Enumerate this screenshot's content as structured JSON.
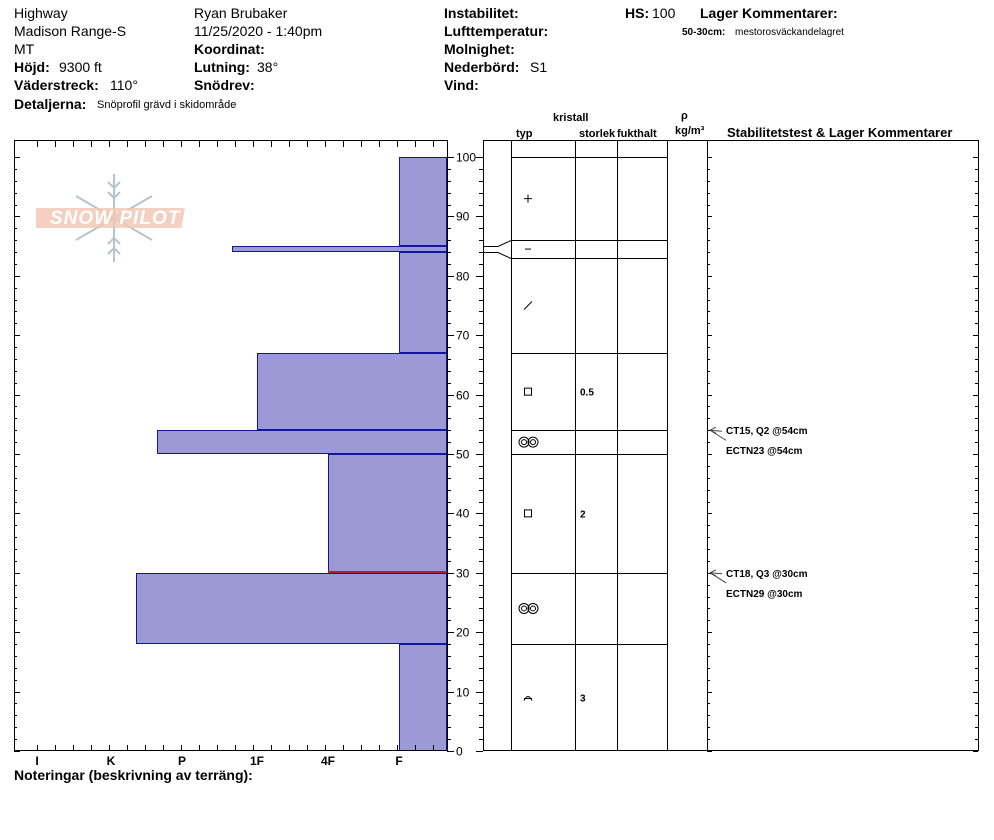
{
  "header": {
    "location": "Highway",
    "range": "Madison Range-S",
    "state": "MT",
    "observer": "Ryan Brubaker",
    "datetime": "11/25/2020 - 1:40pm",
    "elevation_label": "Höjd:",
    "elevation": "9300 ft",
    "aspect_label": "Väderstreck:",
    "aspect": "110°",
    "coord_label": "Koordinat:",
    "slope_label": "Lutning:",
    "slope": "38°",
    "drift_label": "Snödrev:",
    "details_label": "Detaljerna:",
    "details": "Snöprofil grävd i skidområde",
    "instability_label": "Instabilitet:",
    "airtemp_label": "Lufttemperatur:",
    "cloud_label": "Molnighet:",
    "precip_label": "Nederbörd:",
    "precip": "S1",
    "wind_label": "Vind:",
    "hs_label": "HS:",
    "hs": "100",
    "layer_comments_label": "Lager Kommentarer:",
    "layer_comment_depth": "50-30cm:",
    "layer_comment_text": "mestorosväckandelagret"
  },
  "columns": {
    "crystal": "kristall",
    "type": "typ",
    "size": "storlek",
    "moisture": "fukthalt",
    "rho": "ρ",
    "density_unit": "kg/m³",
    "stability": "Stabilitetstest & Lager Kommentarer"
  },
  "notes_label": "Noteringar (beskrivning av terräng):",
  "logo_text": "SNOW PILOT",
  "colors": {
    "bar_fill": "#9b9ad6",
    "bar_edge": "#1414a0",
    "weak_layer": "#b22222"
  },
  "chart_data": {
    "type": "bar",
    "ylabel": "",
    "ylim": [
      0,
      100
    ],
    "yticks": [
      0,
      10,
      20,
      30,
      40,
      50,
      60,
      70,
      80,
      90,
      100
    ],
    "hardness_scale": [
      "I",
      "K",
      "P",
      "1F",
      "4F",
      "F"
    ],
    "hardness_layers": [
      {
        "bottom": 0,
        "top": 18,
        "hardness": "F"
      },
      {
        "bottom": 18,
        "top": 30,
        "hardness": "K+"
      },
      {
        "bottom": 30,
        "top": 50,
        "hardness": "4F"
      },
      {
        "bottom": 50,
        "top": 54,
        "hardness": "P-"
      },
      {
        "bottom": 54,
        "top": 67,
        "hardness": "1F"
      },
      {
        "bottom": 67,
        "top": 84,
        "hardness": "F"
      },
      {
        "bottom": 84,
        "top": 85,
        "hardness": "1F-"
      },
      {
        "bottom": 85,
        "top": 100,
        "hardness": "F"
      }
    ],
    "weak_layer_height": 30,
    "layer_boundaries": [
      100,
      86,
      83,
      67,
      54,
      50,
      30,
      18
    ],
    "crystals": [
      {
        "height": 93,
        "symbol": "+",
        "size": ""
      },
      {
        "height": 84.5,
        "symbol": "–",
        "size": ""
      },
      {
        "height": 75,
        "symbol": "/",
        "size": ""
      },
      {
        "height": 60.5,
        "symbol": "□",
        "size": "0.5"
      },
      {
        "height": 52,
        "symbol": "◎◎",
        "size": ""
      },
      {
        "height": 40,
        "symbol": "□",
        "size": "2"
      },
      {
        "height": 24,
        "symbol": "◎◎",
        "size": ""
      },
      {
        "height": 9,
        "symbol": "^",
        "size": "3"
      }
    ],
    "stability_tests": [
      {
        "height": 54,
        "lines": [
          "CT15, Q2 @54cm",
          "ECTN23 @54cm"
        ]
      },
      {
        "height": 30,
        "lines": [
          "CT18, Q3 @30cm",
          "ECTN29 @30cm"
        ]
      }
    ]
  }
}
